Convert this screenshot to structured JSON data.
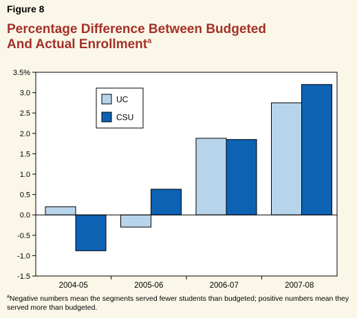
{
  "figure": {
    "label": "Figure 8",
    "title_line1": "Percentage Difference Between Budgeted",
    "title_line2": "And Actual Enrollment",
    "title_superscript": "a"
  },
  "chart_data": {
    "type": "bar",
    "categories": [
      "2004-05",
      "2005-06",
      "2006-07",
      "2007-08"
    ],
    "series": [
      {
        "name": "UC",
        "color": "#b8d4ea",
        "values": [
          0.2,
          -0.3,
          1.88,
          2.75
        ]
      },
      {
        "name": "CSU",
        "color": "#0d62b4",
        "values": [
          -0.88,
          0.63,
          1.85,
          3.2
        ]
      }
    ],
    "ylim": [
      -1.5,
      3.5
    ],
    "yticks": [
      3.5,
      3.0,
      2.5,
      2.0,
      1.5,
      1.0,
      0.5,
      0.0,
      -0.5,
      -1.0,
      -1.5
    ],
    "ytick_labels": [
      "3.5%",
      "3.0",
      "2.5",
      "2.0",
      "1.5",
      "1.0",
      "0.5",
      "0.0",
      "-0.5",
      "-1.0",
      "-1.5"
    ],
    "grid": false,
    "legend": "top-left"
  },
  "footnote": {
    "marker": "a",
    "text": "Negative numbers mean the segments served fewer students than budgeted; positive numbers mean they served more than budgeted."
  }
}
